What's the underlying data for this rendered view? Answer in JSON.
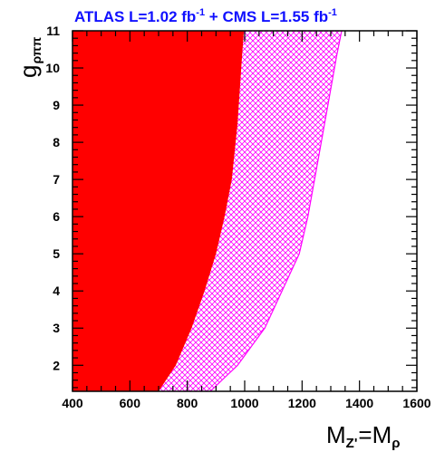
{
  "chart_data": {
    "type": "area",
    "title": {
      "atlas": "ATLAS L=1.02 fb",
      "atlas_exp": "-1",
      "plus": " + CMS L=1.55 fb",
      "cms_exp": "-1"
    },
    "xlabel": {
      "m1": "M",
      "sub1": "Z'",
      "eq": "=M",
      "sub2": "ρ"
    },
    "ylabel": {
      "g": "g",
      "sub": "ρππ"
    },
    "xlim": [
      400,
      1600
    ],
    "ylim": [
      1.3,
      11
    ],
    "xticks": [
      400,
      600,
      800,
      1000,
      1200,
      1400,
      1600
    ],
    "yticks": [
      2,
      3,
      4,
      5,
      6,
      7,
      8,
      9,
      10,
      11
    ],
    "series": [
      {
        "style": "solid",
        "color": "#ff0000",
        "boundary": {
          "x": [
            700,
            760,
            815,
            860,
            900,
            930,
            955,
            975,
            988,
            997
          ],
          "y": [
            1.3,
            2.0,
            3.0,
            4.0,
            5.0,
            6.0,
            7.0,
            8.5,
            10.0,
            11.0
          ]
        }
      },
      {
        "style": "hatched",
        "color": "#ff00ff",
        "boundary": {
          "x": [
            880,
            975,
            1070,
            1130,
            1190,
            1220,
            1255,
            1290,
            1320,
            1338
          ],
          "y": [
            1.3,
            2.0,
            3.0,
            4.0,
            5.0,
            6.0,
            7.5,
            9.0,
            10.3,
            11.0
          ]
        }
      }
    ]
  }
}
